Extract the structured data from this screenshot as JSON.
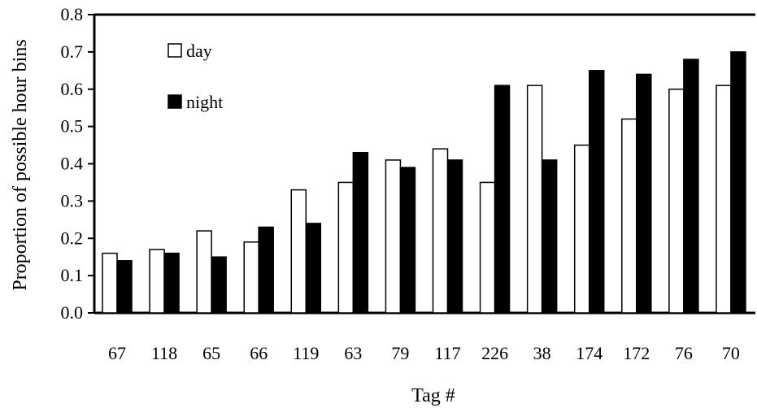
{
  "chart_data": {
    "type": "bar",
    "title": "",
    "xlabel": "Tag #",
    "ylabel": "Proportion of possible hour bins",
    "ylim": [
      0,
      0.8
    ],
    "yticks": [
      "0.0",
      "0.1",
      "0.2",
      "0.3",
      "0.4",
      "0.5",
      "0.6",
      "0.7",
      "0.8"
    ],
    "categories": [
      "67",
      "118",
      "65",
      "66",
      "119",
      "63",
      "79",
      "117",
      "226",
      "38",
      "174",
      "172",
      "76",
      "70"
    ],
    "series": [
      {
        "name": "day",
        "color": "#ffffff",
        "values": [
          0.16,
          0.17,
          0.22,
          0.19,
          0.33,
          0.35,
          0.41,
          0.44,
          0.35,
          0.61,
          0.45,
          0.52,
          0.6,
          0.61
        ]
      },
      {
        "name": "night",
        "color": "#000000",
        "values": [
          0.14,
          0.16,
          0.15,
          0.23,
          0.24,
          0.43,
          0.39,
          0.41,
          0.61,
          0.41,
          0.65,
          0.64,
          0.68,
          0.7
        ]
      }
    ],
    "legend": "top-left",
    "grid": false
  }
}
